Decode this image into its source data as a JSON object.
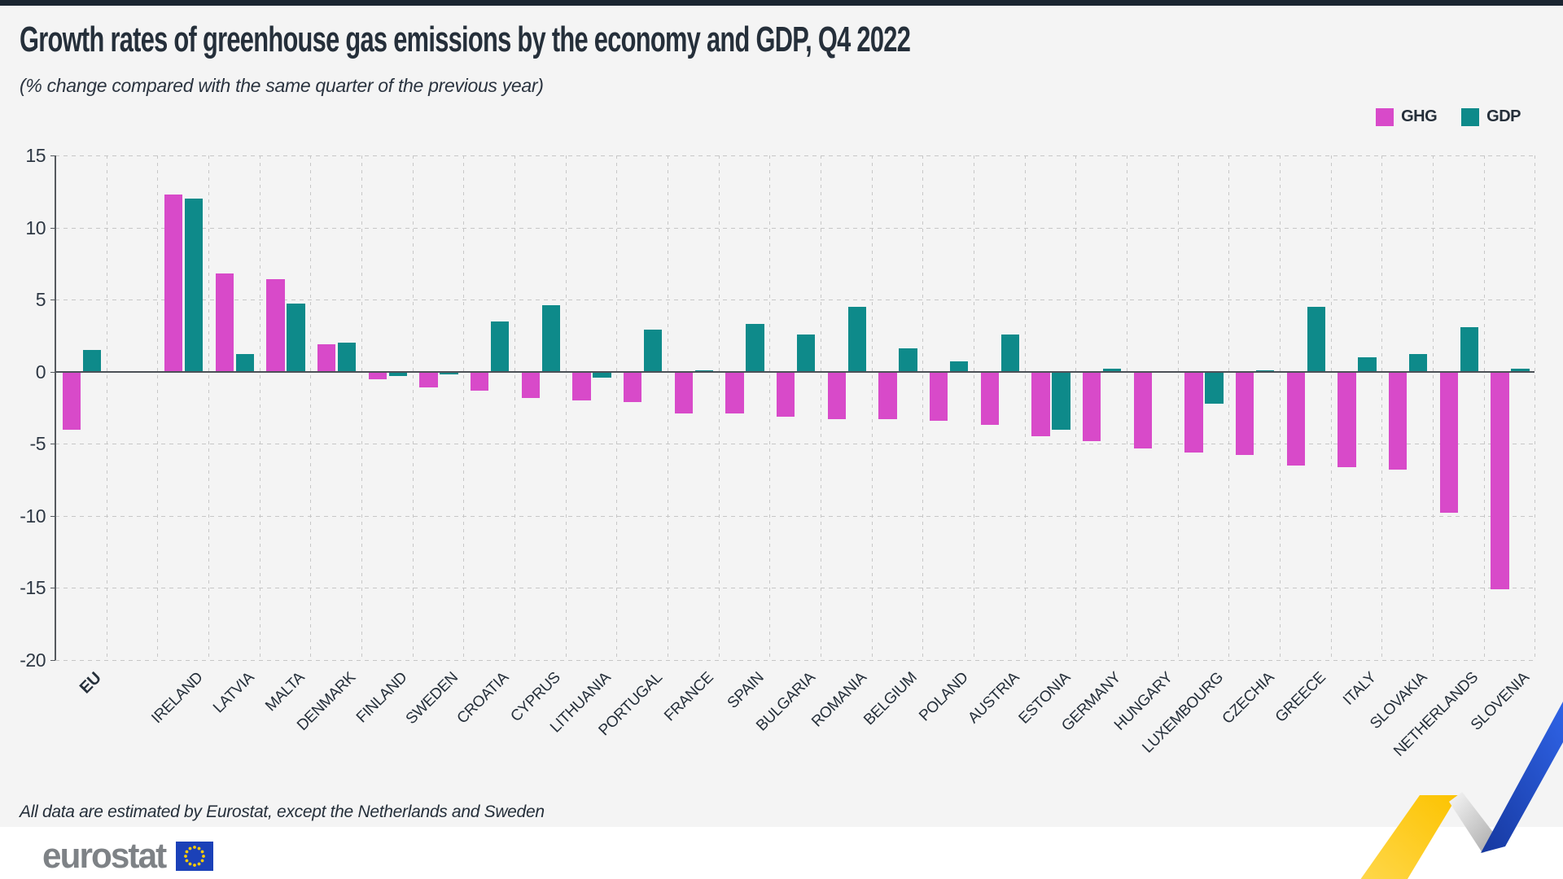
{
  "page": {
    "top_strip_color": "#1b2531",
    "background": "#f4f4f4",
    "footer_background": "#ffffff"
  },
  "header": {
    "title": "Growth rates of greenhouse gas emissions by the economy and GDP, Q4 2022",
    "subtitle": "(% change compared with the same quarter of the previous year)"
  },
  "chart_data": {
    "type": "bar",
    "categories": [
      "EU",
      "IRELAND",
      "LATVIA",
      "MALTA",
      "DENMARK",
      "FINLAND",
      "SWEDEN",
      "CROATIA",
      "CYPRUS",
      "LITHUANIA",
      "PORTUGAL",
      "FRANCE",
      "SPAIN",
      "BULGARIA",
      "ROMANIA",
      "BELGIUM",
      "POLAND",
      "AUSTRIA",
      "ESTONIA",
      "GERMANY",
      "HUNGARY",
      "LUXEMBOURG",
      "CZECHIA",
      "GREECE",
      "ITALY",
      "SLOVAKIA",
      "NETHERLANDS",
      "SLOVENIA"
    ],
    "emphasized_category": "EU",
    "series": [
      {
        "name": "GHG",
        "color": "#d84ac9",
        "values": [
          -4.0,
          12.3,
          6.8,
          6.4,
          1.9,
          -0.5,
          -1.1,
          -1.3,
          -1.8,
          -2.0,
          -2.1,
          -2.9,
          -2.9,
          -3.1,
          -3.3,
          -3.3,
          -3.4,
          -3.7,
          -4.5,
          -4.8,
          -5.3,
          -5.6,
          -5.8,
          -6.5,
          -6.6,
          -6.8,
          -9.8,
          -15.1
        ]
      },
      {
        "name": "GDP",
        "color": "#0e8a8a",
        "values": [
          1.5,
          12.0,
          1.2,
          4.7,
          2.0,
          -0.3,
          -0.2,
          3.5,
          4.6,
          -0.4,
          2.9,
          0.1,
          3.3,
          2.6,
          4.5,
          1.6,
          0.7,
          2.6,
          -4.0,
          0.2,
          0.0,
          -2.2,
          0.1,
          4.5,
          1.0,
          1.2,
          3.1,
          0.2
        ]
      }
    ],
    "title": "Growth rates of greenhouse gas emissions by the economy and GDP, Q4 2022",
    "xlabel": "",
    "ylabel": "",
    "ylim": [
      -20,
      15
    ],
    "yticks": [
      15,
      10,
      5,
      0,
      -5,
      -10,
      -15,
      -20
    ],
    "grid": "dashed",
    "legend_position": "top-right"
  },
  "footnote": "All data are estimated by Eurostat, except the Netherlands and Sweden",
  "logo": {
    "text": "eurostat",
    "flag_blue": "#1b41b8",
    "star_yellow": "#ffcc00"
  }
}
